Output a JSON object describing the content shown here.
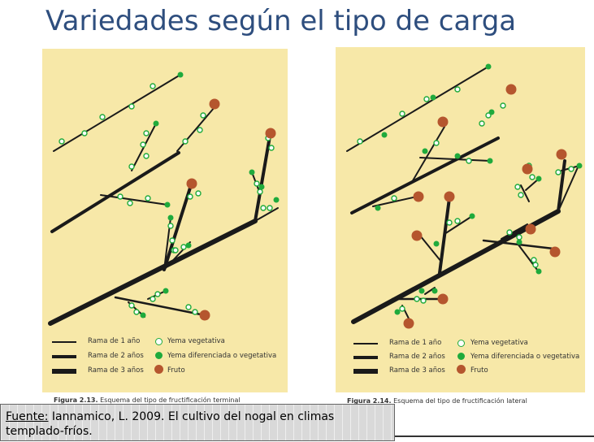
{
  "title": "Variedades según el tipo de carga",
  "figures": [
    {
      "legend": {
        "branch_1": "Rama de 1 año",
        "branch_2": "Rama de 2 años",
        "branch_3": "Rama de 3 años",
        "bud_vegetative": "Yema vegetativa",
        "bud_differentiated": "Yema diferenciada o vegetativa",
        "fruit": "Fruto"
      },
      "caption_label": "Figura 2.13.",
      "caption_text": " Esquema del tipo de fructificación terminal"
    },
    {
      "legend": {
        "branch_1": "Rama de 1 año",
        "branch_2": "Rama de 2 años",
        "branch_3": "Rama de 3 años",
        "bud_vegetative": "Yema vegetativa",
        "bud_differentiated": "Yema diferenciada o vegetativa",
        "fruit": "Fruto"
      },
      "caption_label": "Figura 2.14.",
      "caption_text": " Esquema del tipo de fructificación lateral"
    }
  ],
  "source": {
    "label": "Fuente:",
    "text": "  Iannamico, L.  2009.  El cultivo del nogal en climas templado-fríos."
  },
  "colors": {
    "panel_bg": "#f7e8a8",
    "branch": "#1a1a1a",
    "bud_vegetative_fill": "#ffffff",
    "bud_vegetative_stroke": "#1faa3c",
    "bud_differentiated": "#1faa3c",
    "fruit": "#b5562e",
    "title": "#2e4e7e"
  }
}
